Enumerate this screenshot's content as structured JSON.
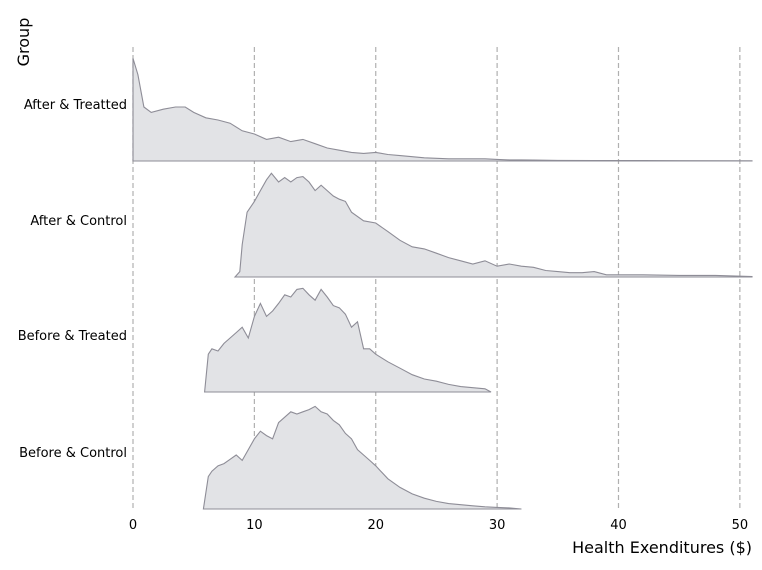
{
  "chart_data": {
    "type": "ridgeline",
    "xlabel": "Health Exenditures ($)",
    "ylabel": "Group",
    "xlim": [
      0,
      51
    ],
    "xticks": [
      0,
      10,
      20,
      30,
      40,
      50
    ],
    "xtick_labels": [
      "0",
      "10",
      "20",
      "30",
      "40",
      "50"
    ],
    "grid": "vertical dashed",
    "series": [
      {
        "name": "After & Treatted",
        "x": [
          0,
          0.4,
          0.9,
          1.5,
          2.5,
          3.5,
          4.3,
          5,
          6,
          7,
          8,
          9,
          10,
          11,
          12,
          13,
          14,
          15,
          16,
          17,
          18,
          19,
          20,
          21,
          22,
          23,
          24,
          25,
          26,
          27,
          28,
          29,
          30,
          31,
          32,
          33,
          35,
          38,
          40,
          42,
          45,
          51
        ],
        "density": [
          0.95,
          0.8,
          0.5,
          0.45,
          0.48,
          0.5,
          0.5,
          0.45,
          0.4,
          0.38,
          0.35,
          0.28,
          0.25,
          0.2,
          0.22,
          0.18,
          0.2,
          0.16,
          0.12,
          0.1,
          0.08,
          0.07,
          0.08,
          0.06,
          0.05,
          0.04,
          0.03,
          0.025,
          0.02,
          0.02,
          0.02,
          0.02,
          0.015,
          0.01,
          0.01,
          0.008,
          0.006,
          0.005,
          0.005,
          0.004,
          0.003,
          0.002
        ]
      },
      {
        "name": "After & Control",
        "x": [
          8.4,
          8.8,
          9,
          9.4,
          10,
          10.5,
          11,
          11.4,
          12,
          12.5,
          13,
          13.5,
          14,
          14.5,
          15,
          15.5,
          16,
          16.5,
          17,
          17.5,
          18,
          19,
          20,
          21,
          22,
          23,
          24,
          25,
          26,
          27,
          28,
          29,
          30,
          31,
          32,
          33,
          34,
          35,
          36,
          37,
          38,
          39,
          40,
          42,
          45,
          48,
          51
        ],
        "density": [
          0.0,
          0.05,
          0.3,
          0.6,
          0.7,
          0.8,
          0.9,
          0.96,
          0.88,
          0.92,
          0.88,
          0.92,
          0.93,
          0.88,
          0.8,
          0.85,
          0.8,
          0.75,
          0.72,
          0.7,
          0.6,
          0.52,
          0.5,
          0.42,
          0.34,
          0.28,
          0.26,
          0.22,
          0.18,
          0.15,
          0.12,
          0.15,
          0.1,
          0.12,
          0.1,
          0.09,
          0.06,
          0.05,
          0.04,
          0.04,
          0.05,
          0.02,
          0.02,
          0.02,
          0.015,
          0.015,
          0.005
        ]
      },
      {
        "name": "Before & Treated",
        "x": [
          5.9,
          6.2,
          6.5,
          7,
          7.5,
          8,
          8.5,
          9,
          9.5,
          10,
          10.5,
          11,
          11.5,
          12,
          12.5,
          13,
          13.5,
          14,
          14.5,
          15,
          15.5,
          16,
          16.5,
          17,
          17.5,
          18,
          18.5,
          19,
          19.5,
          20,
          21,
          22,
          23,
          24,
          25,
          26,
          27,
          28,
          29,
          29.5
        ],
        "density": [
          0.0,
          0.35,
          0.4,
          0.38,
          0.45,
          0.5,
          0.55,
          0.6,
          0.5,
          0.7,
          0.82,
          0.7,
          0.75,
          0.82,
          0.9,
          0.88,
          0.95,
          0.96,
          0.9,
          0.85,
          0.95,
          0.88,
          0.8,
          0.78,
          0.72,
          0.6,
          0.65,
          0.4,
          0.4,
          0.35,
          0.28,
          0.22,
          0.16,
          0.12,
          0.1,
          0.07,
          0.05,
          0.04,
          0.03,
          0.0
        ]
      },
      {
        "name": "Before & Control",
        "x": [
          5.8,
          6.2,
          6.5,
          7,
          7.5,
          8,
          8.5,
          9,
          9.5,
          10,
          10.5,
          11,
          11.5,
          12,
          12.5,
          13,
          13.5,
          14,
          14.5,
          15,
          15.5,
          16,
          16.5,
          17,
          17.5,
          18,
          18.5,
          19,
          19.5,
          20,
          21,
          22,
          23,
          24,
          25,
          26,
          27,
          28,
          29,
          30,
          31,
          32
        ],
        "density": [
          0.0,
          0.3,
          0.35,
          0.4,
          0.42,
          0.46,
          0.5,
          0.45,
          0.55,
          0.65,
          0.72,
          0.68,
          0.65,
          0.8,
          0.85,
          0.9,
          0.88,
          0.9,
          0.92,
          0.95,
          0.9,
          0.88,
          0.82,
          0.78,
          0.7,
          0.65,
          0.55,
          0.5,
          0.45,
          0.4,
          0.28,
          0.2,
          0.14,
          0.1,
          0.07,
          0.05,
          0.04,
          0.03,
          0.02,
          0.015,
          0.01,
          0.0
        ]
      }
    ]
  }
}
